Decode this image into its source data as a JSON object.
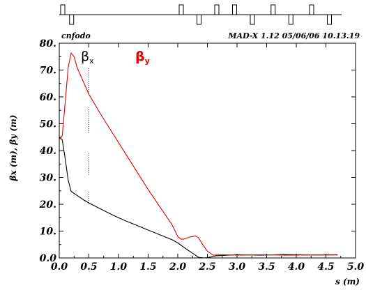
{
  "header": {
    "left_label": "cnfodo",
    "right_label": "MAD-X 1.12  05/06/06 10.13.19"
  },
  "chart_data": {
    "type": "line",
    "xlabel": "s (m)",
    "ylabel": "βx (m), βy (m)",
    "xlim": [
      0.0,
      5.0
    ],
    "ylim": [
      0.0,
      80.0
    ],
    "x_ticks": [
      "0.0",
      "0.5",
      "1.0",
      "1.5",
      "2.0",
      "2.5",
      "3.0",
      "3.5",
      "4.0",
      "4.5",
      "5.0"
    ],
    "y_ticks": [
      "0.0",
      "10.",
      "20.",
      "30.",
      "40.",
      "50.",
      "60.",
      "70.",
      "80."
    ],
    "legend": [
      {
        "label": "β",
        "sub": "x",
        "color": "#000000"
      },
      {
        "label": "β",
        "sub": "y",
        "color": "#e00000"
      }
    ],
    "series": [
      {
        "key": "beta_x",
        "color": "#000000",
        "points": [
          [
            0.0,
            45.0
          ],
          [
            0.05,
            44.0
          ],
          [
            0.1,
            37.0
          ],
          [
            0.15,
            29.0
          ],
          [
            0.2,
            24.8
          ],
          [
            0.3,
            23.3
          ],
          [
            0.4,
            21.8
          ],
          [
            0.5,
            20.5
          ],
          [
            0.7,
            18.2
          ],
          [
            0.9,
            16.0
          ],
          [
            1.1,
            14.0
          ],
          [
            1.3,
            12.2
          ],
          [
            1.5,
            10.4
          ],
          [
            1.7,
            8.6
          ],
          [
            1.9,
            6.8
          ],
          [
            2.0,
            5.6
          ],
          [
            2.05,
            4.8
          ],
          [
            2.1,
            4.0
          ],
          [
            2.2,
            2.5
          ],
          [
            2.3,
            1.0
          ],
          [
            2.35,
            0.2
          ],
          [
            2.45,
            0.0
          ],
          [
            2.55,
            0.3
          ],
          [
            2.65,
            0.8
          ],
          [
            3.0,
            1.2
          ],
          [
            3.4,
            1.0
          ],
          [
            3.8,
            1.3
          ],
          [
            4.2,
            1.1
          ],
          [
            4.7,
            1.2
          ]
        ]
      },
      {
        "key": "beta_y",
        "color": "#e00000",
        "points": [
          [
            0.0,
            44.0
          ],
          [
            0.05,
            45.5
          ],
          [
            0.1,
            58.0
          ],
          [
            0.15,
            71.0
          ],
          [
            0.2,
            76.3
          ],
          [
            0.25,
            75.0
          ],
          [
            0.3,
            71.0
          ],
          [
            0.4,
            66.0
          ],
          [
            0.5,
            61.0
          ],
          [
            0.7,
            53.5
          ],
          [
            0.9,
            46.5
          ],
          [
            1.1,
            39.5
          ],
          [
            1.3,
            32.5
          ],
          [
            1.5,
            25.5
          ],
          [
            1.7,
            19.0
          ],
          [
            1.9,
            12.5
          ],
          [
            2.0,
            8.0
          ],
          [
            2.05,
            7.0
          ],
          [
            2.1,
            7.0
          ],
          [
            2.2,
            7.8
          ],
          [
            2.3,
            8.2
          ],
          [
            2.35,
            7.5
          ],
          [
            2.42,
            5.0
          ],
          [
            2.5,
            2.5
          ],
          [
            2.6,
            1.0
          ],
          [
            2.75,
            1.2
          ],
          [
            3.0,
            1.0
          ],
          [
            3.4,
            1.2
          ],
          [
            3.8,
            1.0
          ],
          [
            4.2,
            1.1
          ],
          [
            4.7,
            1.1
          ]
        ]
      }
    ],
    "markers_x": 0.5,
    "markers_y_ranges": [
      [
        20.5,
        25.0
      ],
      [
        31.0,
        39.5
      ],
      [
        46.5,
        56.0
      ],
      [
        61.0,
        71.0
      ]
    ],
    "lattice": [
      {
        "s": 0.0,
        "dir": "up"
      },
      {
        "s": 0.15,
        "dir": "down"
      },
      {
        "s": 2.0,
        "dir": "up"
      },
      {
        "s": 2.3,
        "dir": "down"
      },
      {
        "s": 2.6,
        "dir": "up"
      },
      {
        "s": 2.9,
        "dir": "up"
      },
      {
        "s": 3.2,
        "dir": "down"
      },
      {
        "s": 3.55,
        "dir": "up"
      },
      {
        "s": 3.85,
        "dir": "down"
      },
      {
        "s": 4.2,
        "dir": "up"
      },
      {
        "s": 4.5,
        "dir": "down"
      }
    ]
  }
}
